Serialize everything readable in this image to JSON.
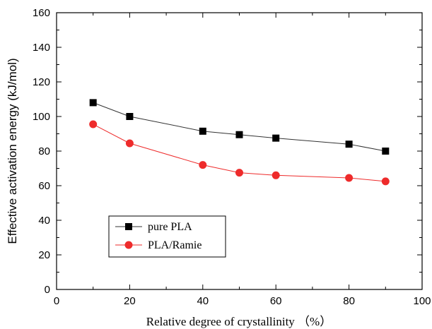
{
  "chart_data": {
    "type": "line",
    "title": "",
    "xlabel": "Relative degree of crystallinity （%）",
    "ylabel": "Effective activation energy (kJ/mol)",
    "xlim": [
      0,
      100
    ],
    "ylim": [
      0,
      160
    ],
    "x_ticks": [
      0,
      20,
      40,
      60,
      80,
      100
    ],
    "y_ticks": [
      0,
      20,
      40,
      60,
      80,
      100,
      120,
      140,
      160
    ],
    "x": [
      10,
      20,
      40,
      50,
      60,
      80,
      90
    ],
    "grid": false,
    "legend_position": "lower-left",
    "series": [
      {
        "name": "pure PLA",
        "values": [
          108,
          100,
          91.5,
          89.5,
          87.5,
          84,
          80
        ],
        "color": "#000000",
        "line_color": "#333333",
        "marker": "square"
      },
      {
        "name": "PLA/Ramie",
        "values": [
          95.5,
          84.5,
          72,
          67.5,
          66,
          64.5,
          62.5
        ],
        "color": "#ee2b2b",
        "line_color": "#ee2b2b",
        "marker": "circle"
      }
    ]
  }
}
